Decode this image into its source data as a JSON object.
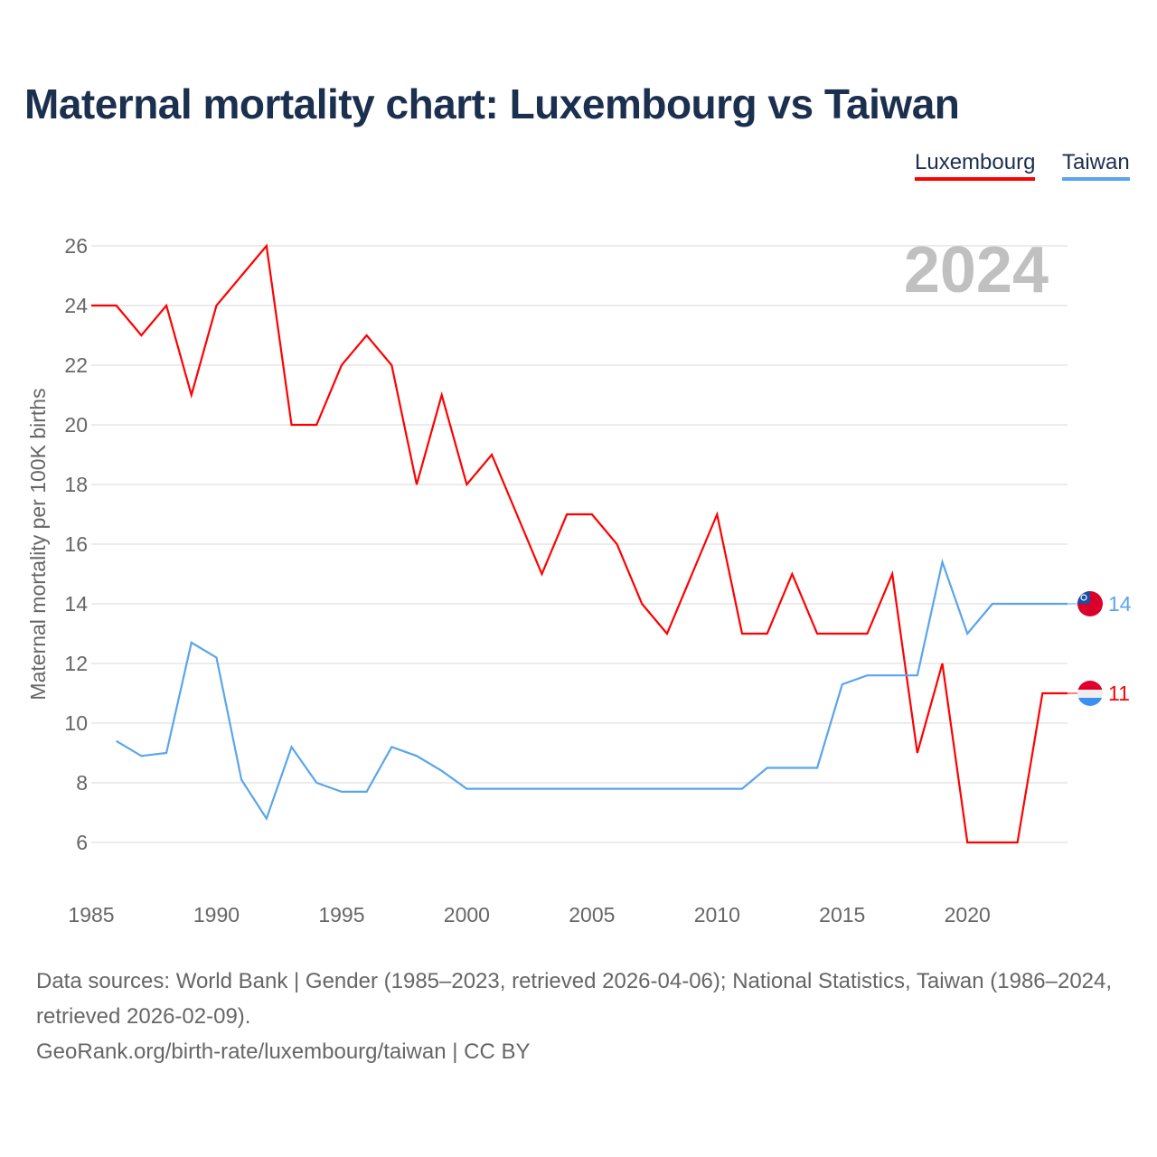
{
  "title": "Maternal mortality chart: Luxembourg vs Taiwan",
  "legend": [
    "Luxembourg",
    "Taiwan"
  ],
  "year_label": "2024",
  "footer": {
    "line1": "Data sources: World Bank | Gender (1985–2023, retrieved 2026-04-06); National Statistics, Taiwan (1986–2024, retrieved 2026-02-09).",
    "line2": "GeoRank.org/birth-rate/luxembourg/taiwan | CC BY"
  },
  "chart_data": {
    "type": "line",
    "title": "Maternal mortality chart: Luxembourg vs Taiwan",
    "xlabel": "",
    "ylabel": "Maternal mortality per 100K births",
    "xlim": [
      1985,
      2024
    ],
    "ylim": [
      6,
      26
    ],
    "yticks": [
      6,
      8,
      10,
      12,
      14,
      16,
      18,
      20,
      22,
      24,
      26
    ],
    "xticks": [
      1985,
      1990,
      1995,
      2000,
      2005,
      2010,
      2015,
      2020
    ],
    "grid": true,
    "legend_position": "top-right",
    "series": [
      {
        "name": "Luxembourg",
        "color": "#ff0000",
        "end_label": "11",
        "end_value": 11,
        "x": [
          1985,
          1986,
          1987,
          1988,
          1989,
          1990,
          1991,
          1992,
          1993,
          1994,
          1995,
          1996,
          1997,
          1998,
          1999,
          2000,
          2001,
          2002,
          2003,
          2004,
          2005,
          2006,
          2007,
          2008,
          2009,
          2010,
          2011,
          2012,
          2013,
          2014,
          2015,
          2016,
          2017,
          2018,
          2019,
          2020,
          2021,
          2022,
          2023
        ],
        "values": [
          24,
          24,
          23,
          24,
          21,
          24,
          25,
          26,
          20,
          20,
          22,
          23,
          22,
          18,
          21,
          18,
          19,
          17,
          15,
          17,
          17,
          16,
          14,
          13,
          15,
          17,
          13,
          13,
          15,
          13,
          13,
          13,
          15,
          9,
          12,
          6,
          6,
          6,
          11
        ]
      },
      {
        "name": "Taiwan",
        "color": "#5aa5ec",
        "end_label": "14",
        "end_value": 14,
        "x": [
          1986,
          1987,
          1988,
          1989,
          1990,
          1991,
          1992,
          1993,
          1994,
          1995,
          1996,
          1997,
          1998,
          1999,
          2000,
          2001,
          2002,
          2003,
          2004,
          2005,
          2006,
          2007,
          2008,
          2009,
          2010,
          2011,
          2012,
          2013,
          2014,
          2015,
          2016,
          2017,
          2018,
          2019,
          2020,
          2021,
          2022,
          2023,
          2024
        ],
        "values": [
          9.4,
          8.9,
          9.0,
          12.7,
          12.2,
          8.1,
          6.8,
          9.2,
          8.0,
          7.7,
          7.7,
          9.2,
          8.9,
          8.4,
          7.8,
          7.8,
          7.8,
          7.8,
          7.8,
          7.8,
          7.8,
          7.8,
          7.8,
          7.8,
          7.8,
          7.8,
          8.5,
          8.5,
          8.5,
          11.3,
          11.6,
          11.6,
          11.6,
          15.4,
          13.0,
          14,
          14,
          14,
          14
        ]
      }
    ]
  }
}
